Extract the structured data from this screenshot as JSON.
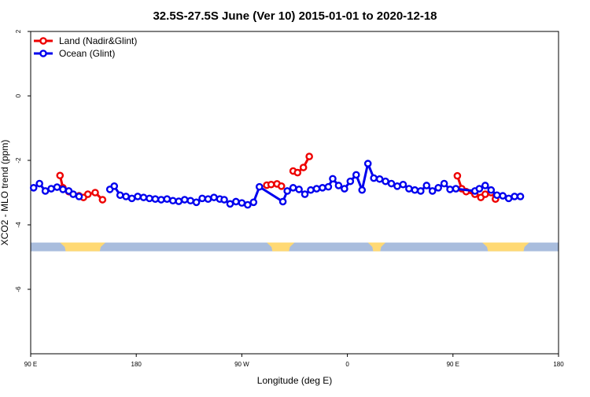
{
  "chart_data": {
    "type": "line",
    "title": "32.5S-27.5S June (Ver 10)   2015-01-01 to 2020-12-18",
    "xlabel": "Longitude (deg E)",
    "ylabel": "XCO2 - MLO trend (ppm)",
    "xlim": [
      90,
      450
    ],
    "ylim": [
      -8,
      2
    ],
    "x_ticks": [
      {
        "value": 90,
        "label": "90 E"
      },
      {
        "value": 162,
        "label": "180"
      },
      {
        "value": 234,
        "label": "90 W"
      },
      {
        "value": 306,
        "label": "0"
      },
      {
        "value": 378,
        "label": "90 E"
      },
      {
        "value": 450,
        "label": "180"
      }
    ],
    "y_ticks": [
      {
        "value": 2,
        "label": "2"
      },
      {
        "value": 0,
        "label": "0"
      },
      {
        "value": -2,
        "label": "-2"
      },
      {
        "value": -4,
        "label": "-4"
      },
      {
        "value": -6,
        "label": "-6"
      }
    ],
    "legend_position": "top-left",
    "series": [
      {
        "name": "Land (Nadir&Glint)",
        "color": "#ee0000",
        "x": [
          110.0,
          112.0,
          116.0,
          123.0,
          126.0,
          129.0,
          134.0,
          139.0,
          251.0,
          254.0,
          258.0,
          261.0,
          269.0,
          272.0,
          276.0,
          280.0,
          381.0,
          384.0,
          387.0,
          393.0,
          397.0,
          400.0,
          404.0,
          407.0
        ],
        "y": [
          -2.47,
          -2.85,
          -2.97,
          -3.1,
          -3.15,
          -3.05,
          -3.0,
          -3.22,
          -2.77,
          -2.75,
          -2.73,
          -2.8,
          -2.33,
          -2.38,
          -2.22,
          -1.88,
          -2.48,
          -2.88,
          -2.97,
          -3.05,
          -3.15,
          -3.05,
          -3.0,
          -3.2
        ],
        "segments": [
          [
            0,
            7
          ],
          [
            8,
            11
          ],
          [
            12,
            15
          ],
          [
            16,
            23
          ]
        ]
      },
      {
        "name": "Ocean (Glint)",
        "color": "#0000ee",
        "x": [
          92.0,
          96.0,
          100.0,
          104.0,
          108.0,
          112.0,
          116.0,
          119.0,
          123.0,
          144.0,
          147.0,
          151.0,
          155.0,
          159.0,
          163.0,
          167.0,
          171.0,
          175.0,
          179.0,
          183.0,
          187.0,
          191.0,
          195.0,
          199.0,
          203.0,
          207.0,
          211.0,
          215.0,
          219.0,
          222.0,
          226.0,
          230.0,
          234.0,
          238.0,
          242.0,
          246.0,
          262.0,
          265.0,
          269.0,
          273.0,
          277.0,
          281.0,
          285.0,
          289.0,
          293.0,
          296.0,
          300.0,
          304.0,
          308.0,
          312.0,
          316.0,
          320.0,
          324.0,
          328.0,
          332.0,
          336.0,
          340.0,
          344.0,
          348.0,
          352.0,
          356.0,
          360.0,
          364.0,
          368.0,
          372.0,
          376.0,
          380.0,
          393.0,
          396.0,
          400.0,
          404.0,
          408.0,
          412.0,
          416.0,
          420.0,
          424.0
        ],
        "y": [
          -2.85,
          -2.72,
          -2.95,
          -2.88,
          -2.83,
          -2.9,
          -2.95,
          -3.05,
          -3.12,
          -2.9,
          -2.8,
          -3.08,
          -3.12,
          -3.18,
          -3.12,
          -3.15,
          -3.18,
          -3.2,
          -3.22,
          -3.2,
          -3.25,
          -3.27,
          -3.22,
          -3.25,
          -3.3,
          -3.18,
          -3.2,
          -3.15,
          -3.2,
          -3.22,
          -3.35,
          -3.28,
          -3.32,
          -3.38,
          -3.3,
          -2.82,
          -3.28,
          -2.95,
          -2.85,
          -2.9,
          -3.05,
          -2.92,
          -2.88,
          -2.85,
          -2.82,
          -2.57,
          -2.78,
          -2.88,
          -2.65,
          -2.45,
          -2.92,
          -2.1,
          -2.55,
          -2.58,
          -2.65,
          -2.72,
          -2.8,
          -2.75,
          -2.88,
          -2.92,
          -2.95,
          -2.78,
          -2.95,
          -2.85,
          -2.72,
          -2.9,
          -2.88,
          -2.95,
          -2.88,
          -2.78,
          -2.92,
          -3.08,
          -3.1,
          -3.18,
          -3.12,
          -3.12
        ],
        "segments": [
          [
            0,
            8
          ],
          [
            9,
            75
          ]
        ]
      }
    ],
    "bands": [
      {
        "y_top": -4.55,
        "y_bottom": -4.82,
        "color": "#a9bddd"
      },
      {
        "color": "#ffd974",
        "x_ranges": [
          [
            110,
            141
          ],
          [
            251,
            270
          ],
          [
            320,
            332
          ],
          [
            398,
            430
          ]
        ]
      }
    ]
  }
}
